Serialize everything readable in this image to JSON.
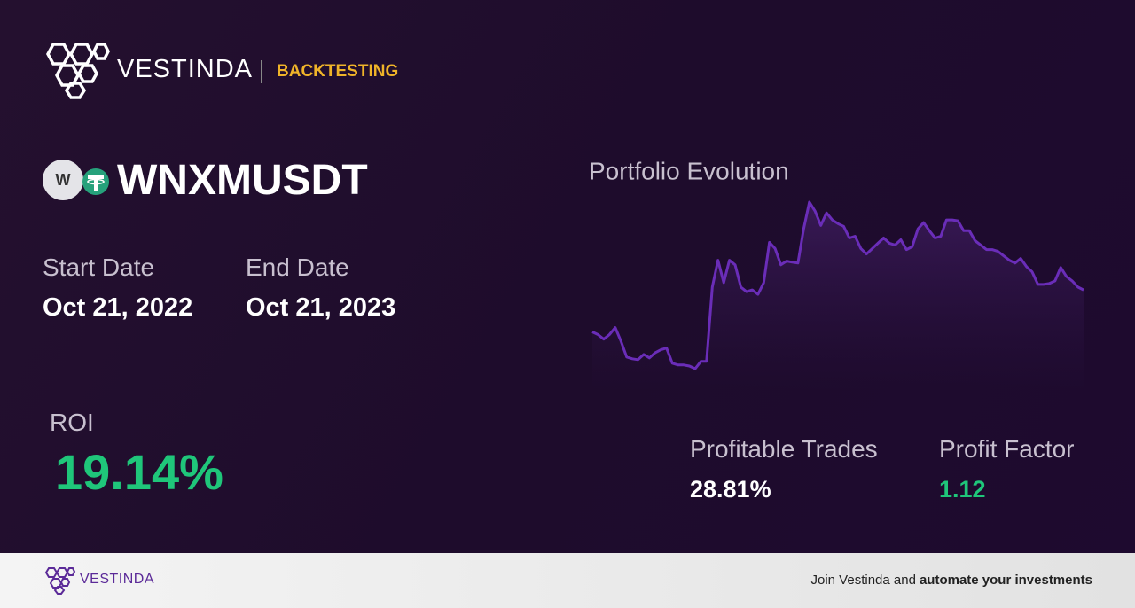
{
  "header": {
    "brand": "VESTINDA",
    "section": "BACKTESTING"
  },
  "asset": {
    "icon_letter": "W",
    "symbol": "WNXMUSDT"
  },
  "dates": {
    "start_label": "Start Date",
    "start": "Oct 21, 2022",
    "end_label": "End Date",
    "end": "Oct 21, 2023"
  },
  "roi": {
    "label": "ROI",
    "value": "19.14%"
  },
  "stats": [
    {
      "label": "Profitable Trades",
      "value": "28.81%"
    },
    {
      "label": "Profit Factor",
      "value": "1.12"
    }
  ],
  "chart_data": {
    "type": "line",
    "title": "Portfolio Evolution",
    "color": "#6a2db8",
    "values": [
      100.0,
      98.8,
      96.7,
      98.8,
      102.0,
      95.9,
      88.6,
      87.8,
      87.4,
      89.8,
      88.2,
      90.6,
      91.9,
      92.7,
      85.8,
      85.0,
      85.0,
      84.5,
      83.3,
      86.6,
      86.6,
      120.4,
      132.6,
      122.4,
      132.6,
      130.5,
      120.4,
      118.3,
      119.1,
      117.1,
      122.4,
      140.7,
      137.9,
      130.5,
      132.2,
      131.7,
      131.3,
      146.8,
      159.0,
      154.9,
      148.4,
      154.1,
      150.9,
      149.2,
      148.0,
      142.7,
      143.5,
      137.9,
      135.4,
      137.9,
      140.3,
      142.7,
      140.3,
      139.5,
      141.9,
      137.4,
      138.7,
      146.8,
      149.7,
      146.0,
      142.7,
      143.5,
      150.9,
      150.9,
      150.5,
      146.0,
      146.0,
      141.5,
      139.5,
      137.4,
      137.4,
      136.6,
      134.6,
      132.6,
      131.3,
      133.4,
      129.7,
      127.3,
      121.6,
      121.6,
      122.0,
      123.2,
      129.3,
      125.2,
      123.2,
      120.4,
      119.1
    ]
  },
  "footer": {
    "brand": "VESTINDA",
    "cta_plain": "Join Vestinda and",
    "cta_bold": "automate your investments"
  }
}
